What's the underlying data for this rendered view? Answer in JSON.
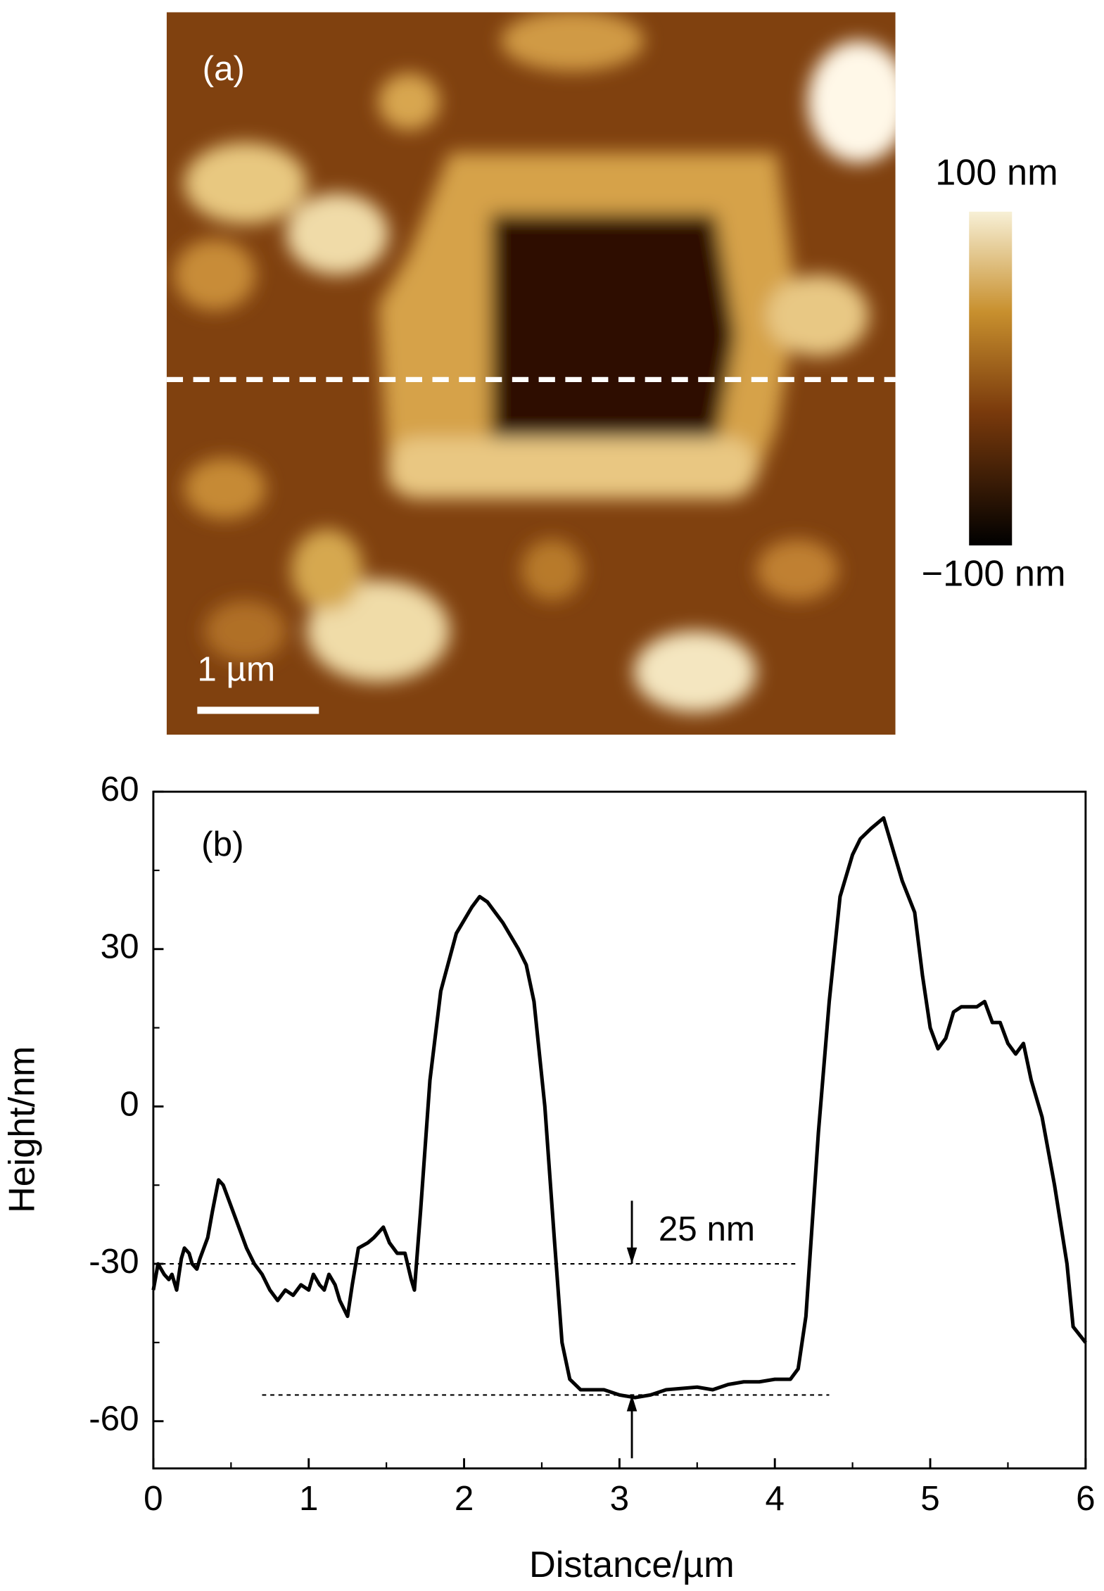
{
  "chart_data": [
    {
      "type": "image",
      "label": "(a)",
      "colorbar_labels": [
        "100 nm",
        "−100 nm"
      ],
      "scale_bar": "1 µm"
    },
    {
      "type": "line",
      "label": "(b)",
      "xlabel": "Distance/µm",
      "ylabel": "Height/nm",
      "color": "#000000",
      "xlim": [
        0,
        6
      ],
      "ylim": [
        -69,
        60
      ],
      "xticks": [
        0,
        1,
        2,
        3,
        4,
        5,
        6
      ],
      "yticks": [
        -60,
        -30,
        0,
        30,
        60
      ],
      "xminorticks": [
        0.5,
        1.5,
        2.5,
        3.5,
        4.5,
        5.5
      ],
      "yminorticks": [
        -45,
        -15,
        15,
        45
      ],
      "x": [
        0,
        0.03,
        0.07,
        0.1,
        0.12,
        0.15,
        0.18,
        0.2,
        0.23,
        0.25,
        0.28,
        0.3,
        0.35,
        0.38,
        0.42,
        0.45,
        0.5,
        0.55,
        0.6,
        0.65,
        0.7,
        0.75,
        0.8,
        0.85,
        0.9,
        0.95,
        1.0,
        1.03,
        1.07,
        1.1,
        1.13,
        1.17,
        1.2,
        1.25,
        1.28,
        1.32,
        1.38,
        1.42,
        1.48,
        1.52,
        1.57,
        1.62,
        1.66,
        1.68,
        1.72,
        1.78,
        1.85,
        1.95,
        2.05,
        2.1,
        2.15,
        2.25,
        2.35,
        2.4,
        2.45,
        2.52,
        2.58,
        2.63,
        2.68,
        2.75,
        2.9,
        3.0,
        3.1,
        3.2,
        3.3,
        3.5,
        3.6,
        3.7,
        3.8,
        3.9,
        4.0,
        4.1,
        4.15,
        4.2,
        4.28,
        4.35,
        4.42,
        4.5,
        4.55,
        4.62,
        4.7,
        4.75,
        4.82,
        4.9,
        4.95,
        5.0,
        5.05,
        5.1,
        5.15,
        5.2,
        5.3,
        5.35,
        5.4,
        5.45,
        5.5,
        5.55,
        5.6,
        5.65,
        5.72,
        5.8,
        5.88,
        5.92,
        6.0
      ],
      "values": [
        -35,
        -30,
        -32,
        -33,
        -32,
        -35,
        -29,
        -27,
        -28,
        -30,
        -31,
        -29,
        -25,
        -20,
        -14,
        -15,
        -19,
        -23,
        -27,
        -30,
        -32,
        -35,
        -37,
        -35,
        -36,
        -34,
        -35,
        -32,
        -34,
        -35,
        -32,
        -34,
        -37,
        -40,
        -34,
        -27,
        -26,
        -25,
        -23,
        -26,
        -28,
        -28,
        -33,
        -35,
        -20,
        5,
        22,
        33,
        38,
        40,
        39,
        35,
        30,
        27,
        20,
        0,
        -25,
        -45,
        -52,
        -54,
        -54,
        -55,
        -55.5,
        -55,
        -54,
        -53.5,
        -54,
        -53,
        -52.5,
        -52.5,
        -52,
        -52,
        -50,
        -40,
        -5,
        20,
        40,
        48,
        51,
        53,
        55,
        50,
        43,
        37,
        25,
        15,
        11,
        13,
        18,
        19,
        19,
        20,
        16,
        16,
        12,
        10,
        12,
        5,
        -2,
        -15,
        -30,
        -42,
        -45
      ],
      "hlines": [
        {
          "y": -30,
          "x": [
            0,
            4.15
          ]
        },
        {
          "y": -55,
          "x": [
            0.7,
            4.35
          ]
        }
      ],
      "annotation": {
        "text": "25 nm",
        "x": 3.08,
        "y": [
          -30,
          -55
        ]
      }
    }
  ]
}
